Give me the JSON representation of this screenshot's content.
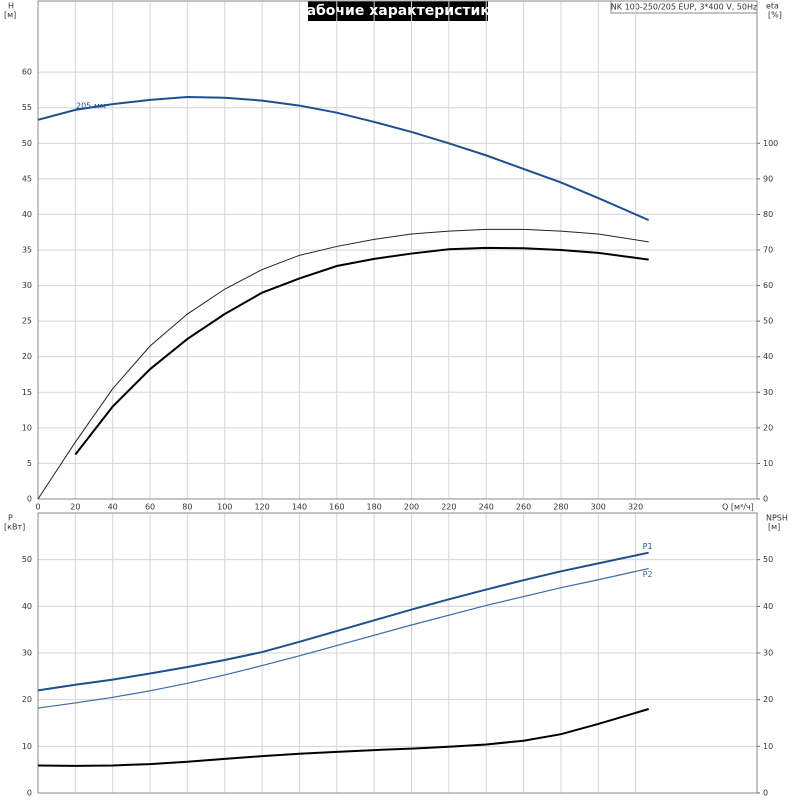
{
  "title": "Рабочие характеристики",
  "model": "NK 100-250/205 EUP, 3*400 V, 50Hz",
  "chart_data": [
    {
      "type": "line",
      "ylabel": "H",
      "yunit": "[м]",
      "y2label": "eta",
      "y2unit": "[%]",
      "xlabel": "Q [м³/ч]",
      "x": [
        0,
        20,
        40,
        60,
        80,
        100,
        120,
        140,
        160,
        180,
        200,
        220,
        240,
        260,
        280,
        300,
        327
      ],
      "xlim": [
        0,
        385
      ],
      "xticks": [
        0,
        20,
        40,
        60,
        80,
        100,
        120,
        140,
        160,
        180,
        200,
        220,
        240,
        260,
        280,
        300,
        320
      ],
      "ylim": [
        0,
        70
      ],
      "yticks": [
        0,
        5,
        10,
        15,
        20,
        25,
        30,
        35,
        40,
        45,
        50,
        55,
        60
      ],
      "y2lim": [
        0,
        140
      ],
      "y2ticks": [
        0,
        10,
        20,
        30,
        40,
        50,
        60,
        70,
        80,
        90,
        100
      ],
      "grid": true,
      "series": [
        {
          "name": "205 мм",
          "color": "#1f4f8f",
          "width": 2,
          "values": [
            53.3,
            54.7,
            55.5,
            56.1,
            56.5,
            56.4,
            56.0,
            55.3,
            54.3,
            53.0,
            51.6,
            50.0,
            48.3,
            46.4,
            44.5,
            42.3,
            39.2
          ]
        },
        {
          "color": "#222222",
          "width": 1,
          "axis": "y2",
          "values": [
            0,
            16,
            31,
            43,
            52,
            59,
            64.5,
            68.5,
            71,
            73,
            74.5,
            75.3,
            75.8,
            75.8,
            75.3,
            74.5,
            72.3
          ]
        },
        {
          "color": "#000000",
          "width": 2,
          "axis": "y2",
          "values": [
            null,
            12.5,
            26,
            36.5,
            45,
            52,
            58,
            62,
            65.5,
            67.5,
            69,
            70.2,
            70.6,
            70.5,
            70,
            69.2,
            67.3
          ]
        }
      ]
    },
    {
      "type": "line",
      "ylabel": "P",
      "yunit": "[кВт]",
      "y2label": "NPSH",
      "y2unit": "[м]",
      "x": [
        0,
        20,
        40,
        60,
        80,
        100,
        120,
        140,
        160,
        180,
        200,
        220,
        240,
        260,
        280,
        300,
        327
      ],
      "xlim": [
        0,
        385
      ],
      "xticks": [
        0,
        20,
        40,
        60,
        80,
        100,
        120,
        140,
        160,
        180,
        200,
        220,
        240,
        260,
        280,
        300,
        320
      ],
      "xtick_labels": false,
      "ylim": [
        0,
        60
      ],
      "yticks": [
        0,
        10,
        20,
        30,
        40,
        50
      ],
      "y2lim": [
        0,
        60
      ],
      "y2ticks": [
        0,
        10,
        20,
        30,
        40,
        50
      ],
      "grid": true,
      "series": [
        {
          "name": "P1",
          "color": "#1f4f8f",
          "width": 2,
          "values": [
            22,
            23.2,
            24.3,
            25.6,
            27,
            28.5,
            30.2,
            32.4,
            34.7,
            37,
            39.3,
            41.5,
            43.6,
            45.6,
            47.5,
            49.2,
            51.5
          ]
        },
        {
          "name": "P2",
          "color": "#3a6aa8",
          "width": 1.2,
          "values": [
            18.2,
            19.3,
            20.5,
            21.9,
            23.5,
            25.3,
            27.3,
            29.4,
            31.6,
            33.8,
            36,
            38.1,
            40.2,
            42.1,
            44,
            45.7,
            48.1
          ]
        },
        {
          "color": "#000000",
          "width": 2,
          "axis": "y2",
          "values": [
            5.9,
            5.8,
            5.9,
            6.2,
            6.7,
            7.3,
            7.9,
            8.4,
            8.8,
            9.2,
            9.5,
            9.9,
            10.4,
            11.2,
            12.6,
            14.8,
            18
          ]
        }
      ]
    }
  ]
}
